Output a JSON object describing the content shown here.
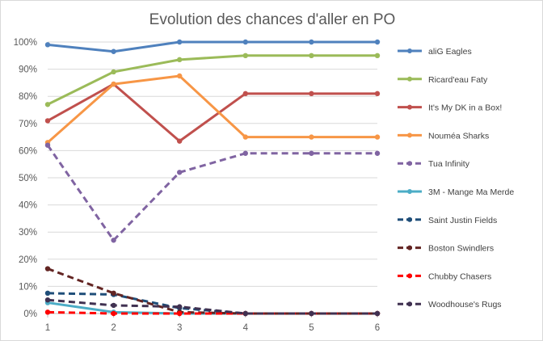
{
  "chart_data": {
    "type": "line",
    "title": "Evolution des chances d'aller en PO",
    "xlabel": "",
    "ylabel": "",
    "x": [
      1,
      2,
      3,
      4,
      5,
      6
    ],
    "ylim": [
      0,
      100
    ],
    "y_ticks": [
      "0%",
      "10%",
      "20%",
      "30%",
      "40%",
      "50%",
      "60%",
      "70%",
      "80%",
      "90%",
      "100%"
    ],
    "grid": true,
    "legend_position": "right",
    "series": [
      {
        "name": "aliG Eagles",
        "values": [
          99,
          96.5,
          100,
          100,
          100,
          100
        ],
        "color": "#4F81BD",
        "dashed": false
      },
      {
        "name": "Ricard'eau Faty",
        "values": [
          77,
          89,
          93.5,
          95,
          95,
          95
        ],
        "color": "#9BBB59",
        "dashed": false
      },
      {
        "name": "It's My DK in a Box!",
        "values": [
          71,
          84.5,
          63.5,
          81,
          81,
          81
        ],
        "color": "#C0504D",
        "dashed": false
      },
      {
        "name": "Nouméa Sharks",
        "values": [
          63,
          84.5,
          87.5,
          65,
          65,
          65
        ],
        "color": "#F79646",
        "dashed": false
      },
      {
        "name": "Tua Infinity",
        "values": [
          62,
          27,
          52,
          59,
          59,
          59
        ],
        "color": "#8064A2",
        "dashed": true
      },
      {
        "name": "3M - Mange Ma Merde",
        "values": [
          4,
          0.5,
          0,
          0,
          0,
          0
        ],
        "color": "#4BACC6",
        "dashed": false
      },
      {
        "name": "Saint Justin Fields",
        "values": [
          7.5,
          7,
          2,
          0,
          0,
          0
        ],
        "color": "#1F4E79",
        "dashed": true
      },
      {
        "name": "Boston Swindlers",
        "values": [
          16.5,
          7.5,
          0.5,
          0,
          0,
          0
        ],
        "color": "#632523",
        "dashed": true
      },
      {
        "name": "Chubby Chasers",
        "values": [
          0.5,
          0,
          0,
          0,
          0,
          0
        ],
        "color": "#FF0000",
        "dashed": true
      },
      {
        "name": "Woodhouse's Rugs",
        "values": [
          5,
          3,
          2.5,
          0,
          0,
          0
        ],
        "color": "#403151",
        "dashed": true
      }
    ]
  }
}
